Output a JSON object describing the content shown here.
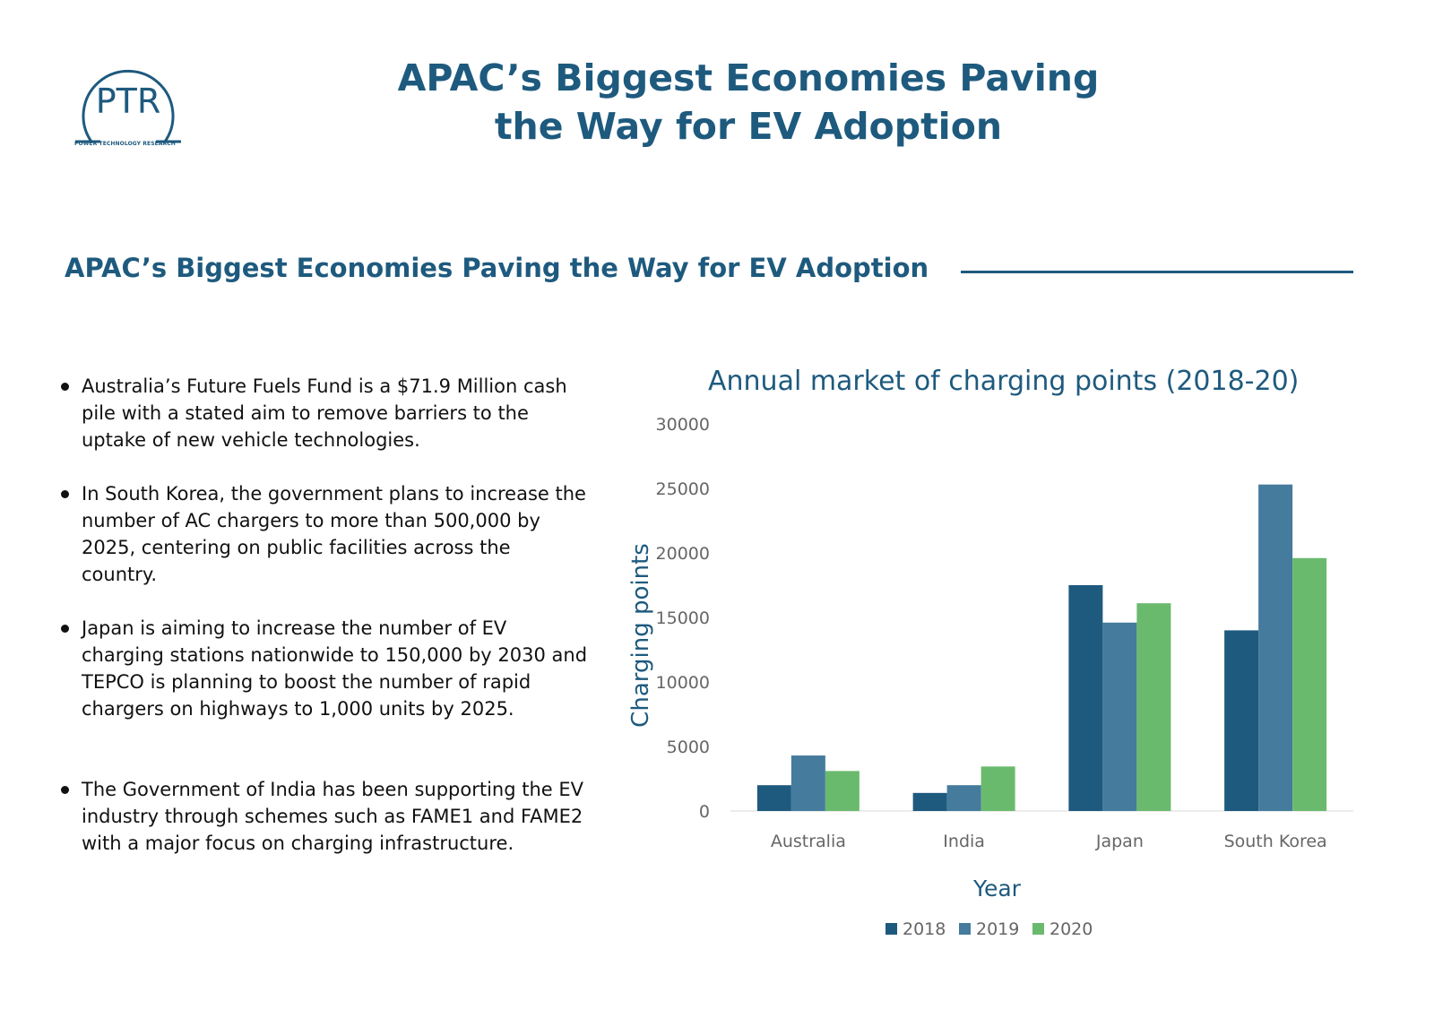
{
  "logo": {
    "letters": "PTR",
    "tagline": "POWER TECHNOLOGY RESEARCH"
  },
  "title": "APAC’s Biggest Economies Paving the Way for EV Adoption",
  "section_title": "APAC’s Biggest Economies Paving the Way for EV Adoption",
  "bullets": [
    "Australia’s Future Fuels Fund is a $71.9 Million cash pile with a stated aim to remove barriers to the uptake of new vehicle technologies.",
    "In South Korea, the government plans to increase the number of AC chargers to more than 500,000 by 2025, centering on public facilities across the country.",
    "Japan is aiming to increase the number of EV charging stations nationwide to 150,000 by 2030 and TEPCO is planning to boost the number of rapid chargers on highways to 1,000 units by 2025.",
    "The Government of India has been supporting the EV industry through schemes such as FAME1 and FAME2 with a major focus on charging infrastructure."
  ],
  "chart_data": {
    "type": "bar",
    "title": "Annual market of charging points (2018-20)",
    "xlabel": "Year",
    "ylabel": "Charging points",
    "categories": [
      "Australia",
      "India",
      "Japan",
      "South Korea"
    ],
    "series": [
      {
        "name": "2018",
        "color": "#1e5a7e",
        "values": [
          2000,
          1400,
          17500,
          14000
        ]
      },
      {
        "name": "2019",
        "color": "#457b9d",
        "values": [
          4300,
          2000,
          14600,
          25300
        ]
      },
      {
        "name": "2020",
        "color": "#6aba6e",
        "values": [
          3100,
          3450,
          16100,
          19600
        ]
      }
    ],
    "ylim": [
      0,
      30000
    ],
    "yticks": [
      0,
      5000,
      10000,
      15000,
      20000,
      25000,
      30000
    ],
    "grid": false,
    "legend": "bottom"
  }
}
